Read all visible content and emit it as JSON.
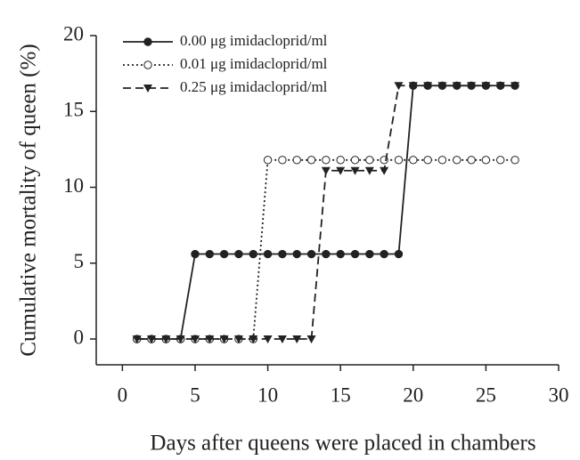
{
  "chart_data": {
    "type": "line",
    "x_label": "Days after queens were placed in chambers",
    "y_label": "Cumulative mortality of queen (%)",
    "x": [
      1,
      2,
      3,
      4,
      5,
      6,
      7,
      8,
      9,
      10,
      11,
      12,
      13,
      14,
      15,
      16,
      17,
      18,
      19,
      20,
      21,
      22,
      23,
      24,
      25,
      26,
      27
    ],
    "series": [
      {
        "name": "0.00 μg imidacloprid/ml",
        "color": "#222222",
        "dash": "solid",
        "marker": "filled-circle",
        "values": [
          0,
          0,
          0,
          0,
          5.6,
          5.6,
          5.6,
          5.6,
          5.6,
          5.6,
          5.6,
          5.6,
          5.6,
          5.6,
          5.6,
          5.6,
          5.6,
          5.6,
          5.6,
          16.7,
          16.7,
          16.7,
          16.7,
          16.7,
          16.7,
          16.7,
          16.7
        ]
      },
      {
        "name": "0.01 μg imidacloprid/ml",
        "color": "#222222",
        "dash": "dotted",
        "marker": "open-circle",
        "values": [
          0,
          0,
          0,
          0,
          0,
          0,
          0,
          0,
          0,
          11.8,
          11.8,
          11.8,
          11.8,
          11.8,
          11.8,
          11.8,
          11.8,
          11.8,
          11.8,
          11.8,
          11.8,
          11.8,
          11.8,
          11.8,
          11.8,
          11.8,
          11.8
        ]
      },
      {
        "name": "0.25 μg imidacloprid/ml",
        "color": "#222222",
        "dash": "dashed",
        "marker": "triangle-down",
        "values": [
          0,
          0,
          0,
          0,
          0,
          0,
          0,
          0,
          0,
          0,
          0,
          0,
          0,
          11.1,
          11.1,
          11.1,
          11.1,
          11.1,
          16.7,
          16.7,
          16.7,
          16.7,
          16.7,
          16.7,
          16.7,
          16.7,
          16.7
        ]
      }
    ],
    "xlim": [
      -1.8,
      30
    ],
    "xticks": [
      0,
      5,
      10,
      15,
      20,
      25,
      30
    ],
    "ylim": [
      -1.7,
      20
    ],
    "yticks": [
      0,
      5,
      10,
      15,
      20
    ],
    "legend": "upper-left",
    "grid": false
  }
}
